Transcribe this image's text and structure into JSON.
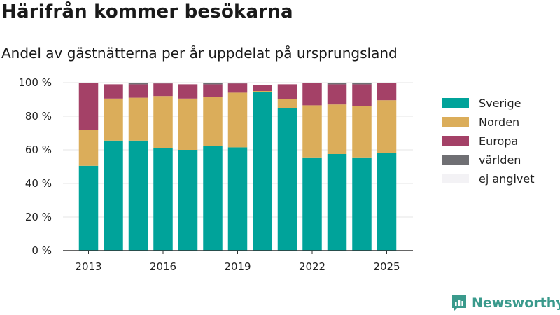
{
  "chart_data": {
    "type": "bar",
    "stacked": true,
    "title": "Härifrån kommer besökarna",
    "subtitle": "Andel av gästnätterna per år uppdelat på ursprungsland",
    "x": [
      2013,
      2014,
      2015,
      2016,
      2017,
      2018,
      2019,
      2020,
      2021,
      2022,
      2023,
      2024,
      2025
    ],
    "xticks": [
      "2013",
      "2016",
      "2019",
      "2022",
      "2025"
    ],
    "yticks": [
      "0 %",
      "20 %",
      "40 %",
      "60 %",
      "80 %",
      "100 %"
    ],
    "ylim": [
      0,
      100
    ],
    "legend_position": "right",
    "series": [
      {
        "name": "Sverige",
        "color": "#00a39a",
        "values": [
          50.5,
          65.5,
          65.5,
          61,
          60,
          62.5,
          61.5,
          94.5,
          85,
          55.5,
          57.5,
          55.5,
          58
        ]
      },
      {
        "name": "Norden",
        "color": "#dbad5a",
        "values": [
          21.5,
          25,
          25.5,
          31,
          30.5,
          29,
          32.5,
          0.5,
          5,
          31,
          29.5,
          30.5,
          31.5
        ]
      },
      {
        "name": "Europa",
        "color": "#a44167",
        "values": [
          28,
          8.5,
          8,
          7.5,
          8.5,
          7.5,
          5.5,
          3.5,
          9,
          13.5,
          12,
          13,
          10.5
        ]
      },
      {
        "name": "världen",
        "color": "#6f6f73",
        "values": [
          0,
          0,
          1,
          0.5,
          0,
          1,
          0.5,
          0,
          0,
          0,
          1,
          1,
          0
        ]
      },
      {
        "name": "ej angivet",
        "color": "#f3f2f5",
        "values": [
          0,
          0,
          0,
          0,
          0,
          0,
          0,
          0,
          0,
          0,
          0,
          0,
          0
        ]
      }
    ]
  },
  "branding": {
    "logo_text": "Newsworthy",
    "logo_icon": "newsworthy-chart-icon",
    "color": "#3a9a8c"
  }
}
